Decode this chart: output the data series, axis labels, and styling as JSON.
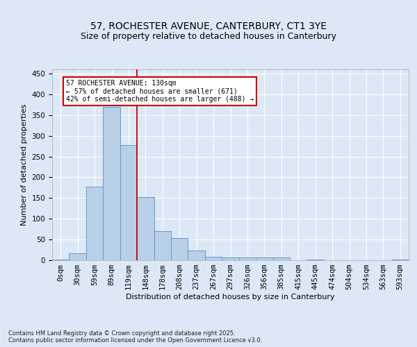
{
  "title": "57, ROCHESTER AVENUE, CANTERBURY, CT1 3YE",
  "subtitle": "Size of property relative to detached houses in Canterbury",
  "xlabel": "Distribution of detached houses by size in Canterbury",
  "ylabel": "Number of detached properties",
  "bar_labels": [
    "0sqm",
    "30sqm",
    "59sqm",
    "89sqm",
    "119sqm",
    "148sqm",
    "178sqm",
    "208sqm",
    "237sqm",
    "267sqm",
    "297sqm",
    "326sqm",
    "356sqm",
    "385sqm",
    "415sqm",
    "445sqm",
    "474sqm",
    "504sqm",
    "534sqm",
    "563sqm",
    "593sqm"
  ],
  "bar_values": [
    2,
    16,
    177,
    370,
    278,
    152,
    70,
    54,
    24,
    9,
    7,
    6,
    6,
    7,
    0,
    1,
    0,
    0,
    0,
    0,
    2
  ],
  "bar_color": "#b8d0e8",
  "bar_edge_color": "#6699cc",
  "vline_color": "#cc0000",
  "annotation_text": "57 ROCHESTER AVENUE: 130sqm\n← 57% of detached houses are smaller (671)\n42% of semi-detached houses are larger (488) →",
  "annotation_box_color": "#ffffff",
  "annotation_box_edge_color": "#cc0000",
  "ylim": [
    0,
    460
  ],
  "yticks": [
    0,
    50,
    100,
    150,
    200,
    250,
    300,
    350,
    400,
    450
  ],
  "bg_color": "#dce8f5",
  "plot_bg_color": "#dce8f5",
  "footer": "Contains HM Land Registry data © Crown copyright and database right 2025.\nContains public sector information licensed under the Open Government Licence v3.0.",
  "title_fontsize": 10,
  "subtitle_fontsize": 9,
  "xlabel_fontsize": 8,
  "ylabel_fontsize": 8,
  "tick_fontsize": 7.5,
  "footer_fontsize": 6.0
}
